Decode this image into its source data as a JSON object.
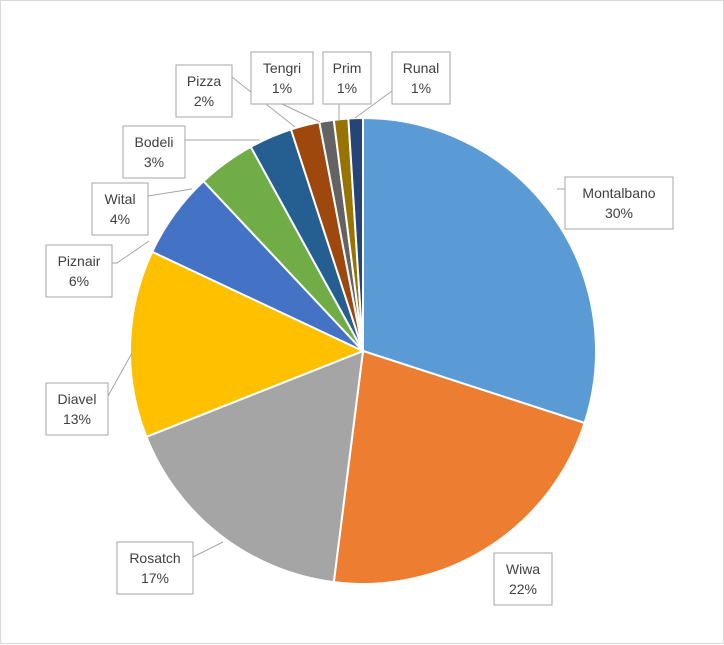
{
  "chart_data": {
    "type": "pie",
    "title": "",
    "legend": "none",
    "slices": [
      {
        "label": "Montalbano",
        "value": 30,
        "pct_label": "30%",
        "color": "#5B9BD5"
      },
      {
        "label": "Wiwa",
        "value": 22,
        "pct_label": "22%",
        "color": "#ED7D31"
      },
      {
        "label": "Rosatch",
        "value": 17,
        "pct_label": "17%",
        "color": "#A5A5A5"
      },
      {
        "label": "Diavel",
        "value": 13,
        "pct_label": "13%",
        "color": "#FFC000"
      },
      {
        "label": "Piznair",
        "value": 6,
        "pct_label": "6%",
        "color": "#4472C4"
      },
      {
        "label": "Wital",
        "value": 4,
        "pct_label": "4%",
        "color": "#70AD47"
      },
      {
        "label": "Bodeli",
        "value": 3,
        "pct_label": "3%",
        "color": "#255E91"
      },
      {
        "label": "Pizza",
        "value": 2,
        "pct_label": "2%",
        "color": "#9E480E"
      },
      {
        "label": "Tengri",
        "value": 1,
        "pct_label": "1%",
        "color": "#636363"
      },
      {
        "label": "Prim",
        "value": 1,
        "pct_label": "1%",
        "color": "#997300"
      },
      {
        "label": "Runal",
        "value": 1,
        "pct_label": "1%",
        "color": "#264478"
      }
    ]
  }
}
